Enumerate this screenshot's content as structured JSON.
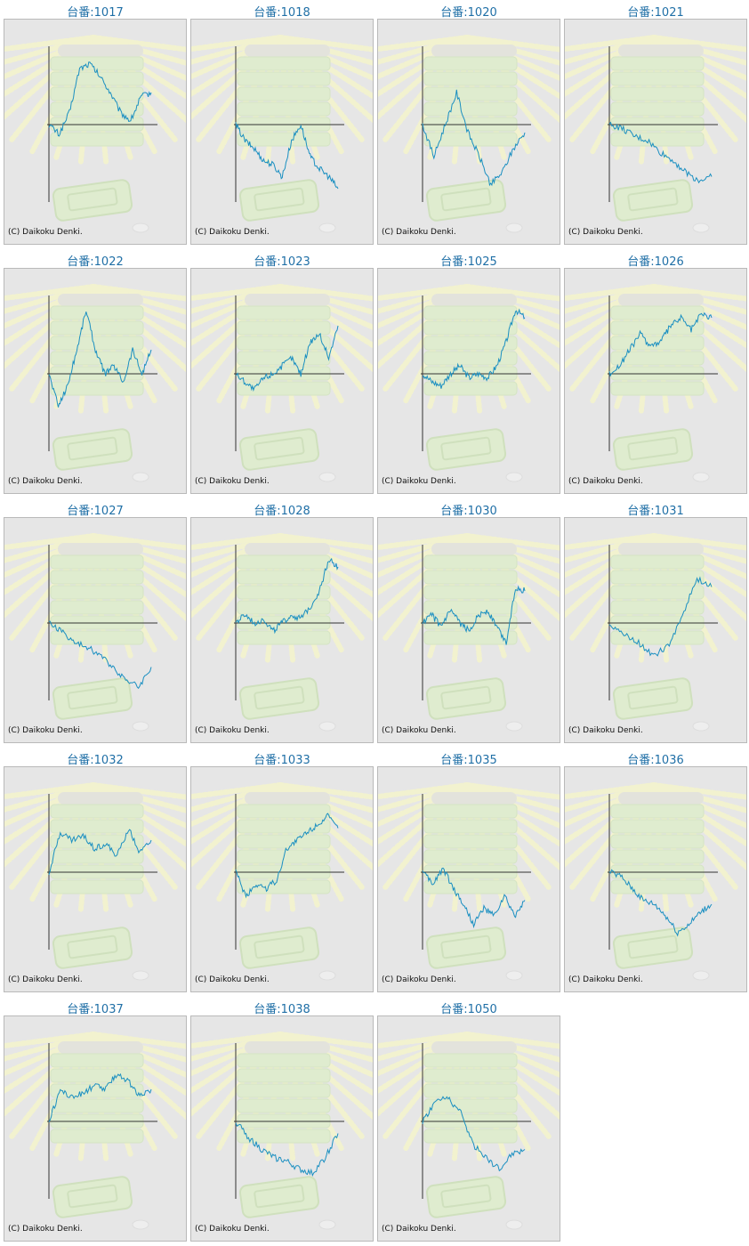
{
  "header_prefix": "台番:",
  "credit": "(C) Daikoku Denki.",
  "colors": {
    "line": "#1a8fc1",
    "axis": "#333333",
    "panel_bg": "#e6e6e6",
    "title": "#1f6fa6"
  },
  "chart_data": [
    {
      "type": "line",
      "title": "台番:1017",
      "machine": "1017",
      "y": [
        0,
        -12,
        15,
        70,
        76,
        60,
        40,
        15,
        5,
        35,
        40
      ]
    },
    {
      "type": "line",
      "title": "台番:1018",
      "machine": "1018",
      "y": [
        0,
        -20,
        -30,
        -45,
        -50,
        -65,
        -20,
        0,
        -40,
        -55,
        -65,
        -80
      ]
    },
    {
      "type": "line",
      "title": "台番:1020",
      "machine": "1020",
      "y": [
        0,
        -40,
        0,
        40,
        -10,
        -40,
        -75,
        -60,
        -30,
        -10
      ]
    },
    {
      "type": "line",
      "title": "台番:1021",
      "machine": "1021",
      "y": [
        0,
        -5,
        -15,
        -20,
        -35,
        -45,
        -60,
        -70,
        -65
      ]
    },
    {
      "type": "line",
      "title": "台番:1022",
      "machine": "1022",
      "y": [
        0,
        -40,
        -15,
        30,
        80,
        30,
        0,
        10,
        -10,
        30,
        0,
        30
      ]
    },
    {
      "type": "line",
      "title": "台番:1023",
      "machine": "1023",
      "y": [
        0,
        -10,
        -20,
        -5,
        0,
        10,
        20,
        0,
        40,
        50,
        20,
        60
      ]
    },
    {
      "type": "line",
      "title": "台番:1025",
      "machine": "1025",
      "y": [
        0,
        -10,
        -15,
        0,
        10,
        -5,
        0,
        -5,
        10,
        40,
        80,
        70
      ]
    },
    {
      "type": "line",
      "title": "台番:1026",
      "machine": "1026",
      "y": [
        0,
        10,
        30,
        50,
        35,
        40,
        60,
        70,
        55,
        75,
        70
      ]
    },
    {
      "type": "line",
      "title": "台番:1027",
      "machine": "1027",
      "y": [
        0,
        -10,
        -25,
        -30,
        -40,
        -55,
        -70,
        -80,
        -55
      ]
    },
    {
      "type": "line",
      "title": "台番:1028",
      "machine": "1028",
      "y": [
        0,
        10,
        0,
        5,
        -10,
        0,
        10,
        5,
        20,
        40,
        80,
        70
      ]
    },
    {
      "type": "line",
      "title": "台番:1030",
      "machine": "1030",
      "y": [
        0,
        10,
        -5,
        15,
        0,
        -10,
        10,
        15,
        -5,
        -25,
        45,
        40
      ]
    },
    {
      "type": "line",
      "title": "台番:1031",
      "machine": "1031",
      "y": [
        0,
        -15,
        -25,
        -40,
        -30,
        10,
        55,
        45
      ]
    },
    {
      "type": "line",
      "title": "台番:1032",
      "machine": "1032",
      "y": [
        0,
        50,
        40,
        45,
        30,
        35,
        20,
        55,
        25,
        40
      ]
    },
    {
      "type": "line",
      "title": "台番:1033",
      "machine": "1033",
      "y": [
        0,
        -30,
        -15,
        -20,
        -10,
        30,
        40,
        50,
        60,
        70,
        55
      ]
    },
    {
      "type": "line",
      "title": "台番:1035",
      "machine": "1035",
      "y": [
        0,
        -15,
        5,
        -20,
        -40,
        -65,
        -45,
        -55,
        -30,
        -55,
        -35
      ]
    },
    {
      "type": "line",
      "title": "台番:1036",
      "machine": "1036",
      "y": [
        0,
        -5,
        -20,
        -35,
        -40,
        -55,
        -75,
        -65,
        -50,
        -40
      ]
    },
    {
      "type": "line",
      "title": "台番:1037",
      "machine": "1037",
      "y": [
        0,
        40,
        30,
        35,
        45,
        40,
        60,
        50,
        30,
        40
      ]
    },
    {
      "type": "line",
      "title": "台番:1038",
      "machine": "1038",
      "y": [
        0,
        -20,
        -35,
        -45,
        -50,
        -60,
        -65,
        -45,
        -15
      ]
    },
    {
      "type": "line",
      "title": "台番:1050",
      "machine": "1050",
      "y": [
        0,
        25,
        30,
        10,
        -30,
        -45,
        -60,
        -40,
        -35
      ]
    }
  ]
}
